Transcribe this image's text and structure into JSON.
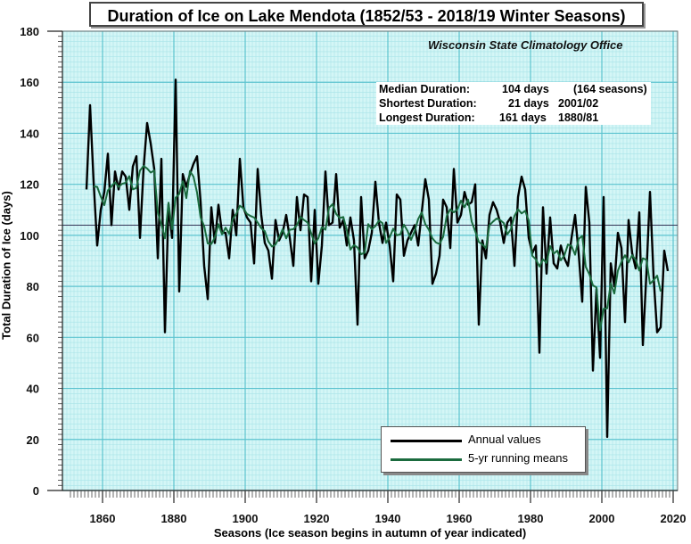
{
  "chart_data": {
    "type": "line",
    "title": "Duration of Ice on Lake Mendota (1852/53 - 2018/19 Winter Seasons)",
    "credit": "Wisconsin State Climatology Office",
    "xlabel": "Seasons (Ice season begins in autumn of year indicated)",
    "ylabel": "Total Duration of Ice (days)",
    "xlim": [
      1849,
      2021
    ],
    "ylim": [
      0,
      180
    ],
    "x_ticks": [
      1860,
      1880,
      1900,
      1920,
      1940,
      1960,
      1980,
      2000,
      2020
    ],
    "y_ticks": [
      0,
      20,
      40,
      60,
      80,
      100,
      120,
      140,
      160,
      180
    ],
    "grid": true,
    "median_line": 104,
    "stats": {
      "median_label": "Median Duration:",
      "median_value": "104 days",
      "median_note": "(164 seasons)",
      "shortest_label": "Shortest Duration:",
      "shortest_value": "21 days",
      "shortest_season": "2001/02",
      "longest_label": "Longest Duration:",
      "longest_value": "161 days",
      "longest_season": "1880/81"
    },
    "legend_position": "bottom-right",
    "start_year": 1855,
    "series": [
      {
        "name": "Annual values",
        "color": "#000000",
        "values": [
          118,
          151,
          121,
          96,
          110,
          117,
          132,
          104,
          125,
          118,
          125,
          123,
          110,
          127,
          131,
          99,
          126,
          144,
          136,
          126,
          91,
          130,
          62,
          112,
          99,
          161,
          78,
          124,
          119,
          124,
          128,
          131,
          113,
          88,
          75,
          111,
          97,
          112,
          101,
          101,
          91,
          110,
          100,
          130,
          111,
          107,
          105,
          89,
          126,
          108,
          97,
          94,
          83,
          106,
          98,
          101,
          108,
          99,
          88,
          115,
          102,
          116,
          115,
          82,
          110,
          81,
          96,
          125,
          104,
          105,
          124,
          103,
          106,
          96,
          107,
          98,
          65,
          115,
          91,
          94,
          101,
          121,
          105,
          97,
          105,
          96,
          82,
          116,
          114,
          92,
          98,
          101,
          104,
          96,
          109,
          122,
          114,
          81,
          85,
          92,
          114,
          111,
          95,
          126,
          105,
          108,
          117,
          112,
          113,
          120,
          65,
          98,
          91,
          108,
          113,
          110,
          105,
          97,
          105,
          107,
          88,
          115,
          123,
          118,
          99,
          93,
          96,
          54,
          111,
          85,
          107,
          89,
          87,
          96,
          91,
          88,
          99,
          108,
          93,
          74,
          119,
          105,
          47,
          79,
          52,
          115,
          21,
          89,
          80,
          101,
          95,
          66,
          106,
          93,
          87,
          109,
          57,
          85,
          117,
          84,
          62,
          64,
          94,
          86
        ]
      },
      {
        "name": "5-yr running means",
        "color": "#1b6b3e",
        "window": 5
      }
    ]
  }
}
